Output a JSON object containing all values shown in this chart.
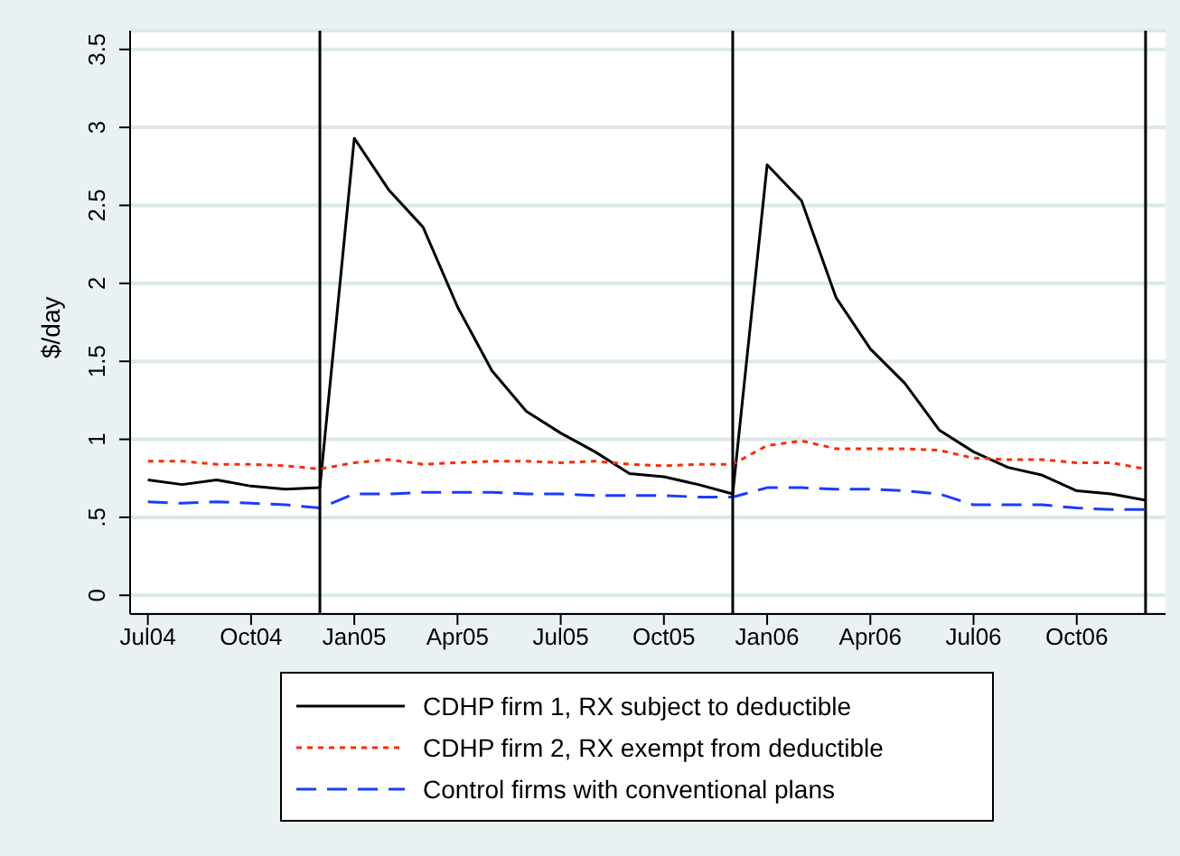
{
  "chart_data": {
    "type": "line",
    "ylabel": "$/day",
    "x": [
      "2004-07",
      "2004-08",
      "2004-09",
      "2004-10",
      "2004-11",
      "2004-12",
      "2005-01",
      "2005-02",
      "2005-03",
      "2005-04",
      "2005-05",
      "2005-06",
      "2005-07",
      "2005-08",
      "2005-09",
      "2005-10",
      "2005-11",
      "2005-12",
      "2006-01",
      "2006-02",
      "2006-03",
      "2006-04",
      "2006-05",
      "2006-06",
      "2006-07",
      "2006-08",
      "2006-09",
      "2006-10",
      "2006-11",
      "2006-12"
    ],
    "series": [
      {
        "name": "CDHP firm 1, RX subject to deductible",
        "color": "#000000",
        "line_style": "solid",
        "values": [
          0.74,
          0.71,
          0.74,
          0.7,
          0.68,
          0.69,
          2.93,
          2.6,
          2.36,
          1.85,
          1.44,
          1.18,
          1.04,
          0.92,
          0.78,
          0.76,
          0.71,
          0.65,
          2.76,
          2.53,
          1.91,
          1.58,
          1.36,
          1.06,
          0.92,
          0.82,
          0.77,
          0.67,
          0.65,
          0.61
        ]
      },
      {
        "name": "CDHP firm 2, RX exempt from deductible",
        "color": "#ff2a00",
        "line_style": "dotted",
        "values": [
          0.86,
          0.86,
          0.84,
          0.84,
          0.83,
          0.81,
          0.85,
          0.87,
          0.84,
          0.85,
          0.86,
          0.86,
          0.85,
          0.86,
          0.84,
          0.83,
          0.84,
          0.84,
          0.96,
          0.99,
          0.94,
          0.94,
          0.94,
          0.93,
          0.88,
          0.87,
          0.87,
          0.85,
          0.85,
          0.81
        ]
      },
      {
        "name": "Control firms with conventional plans",
        "color": "#1a3cff",
        "line_style": "dashed",
        "values": [
          0.6,
          0.59,
          0.6,
          0.59,
          0.58,
          0.56,
          0.65,
          0.65,
          0.66,
          0.66,
          0.66,
          0.65,
          0.65,
          0.64,
          0.64,
          0.64,
          0.63,
          0.63,
          0.69,
          0.69,
          0.68,
          0.68,
          0.67,
          0.65,
          0.58,
          0.58,
          0.58,
          0.56,
          0.55,
          0.55
        ]
      }
    ],
    "xlim": [
      "2004-06-16",
      "2006-12-19"
    ],
    "xticks": [
      {
        "value": "2004-07",
        "label": "Jul04"
      },
      {
        "value": "2004-10",
        "label": "Oct04"
      },
      {
        "value": "2005-01",
        "label": "Jan05"
      },
      {
        "value": "2005-04",
        "label": "Apr05"
      },
      {
        "value": "2005-07",
        "label": "Jul05"
      },
      {
        "value": "2005-10",
        "label": "Oct05"
      },
      {
        "value": "2006-01",
        "label": "Jan06"
      },
      {
        "value": "2006-04",
        "label": "Apr06"
      },
      {
        "value": "2006-07",
        "label": "Jul06"
      },
      {
        "value": "2006-10",
        "label": "Oct06"
      }
    ],
    "ylim": [
      -0.12,
      3.62
    ],
    "yticks": [
      0,
      {
        "value": 0.5,
        "label": ".5"
      },
      1,
      1.5,
      2,
      2.5,
      3,
      3.5
    ],
    "ref_lines": [
      {
        "axis": "x",
        "value": "2004-12",
        "color": "#000000"
      },
      {
        "axis": "x",
        "value": "2005-12",
        "color": "#000000"
      },
      {
        "axis": "x",
        "value": "2006-12",
        "color": "#000000"
      }
    ],
    "grid": "y",
    "legend": "bottom",
    "marker": "none"
  }
}
